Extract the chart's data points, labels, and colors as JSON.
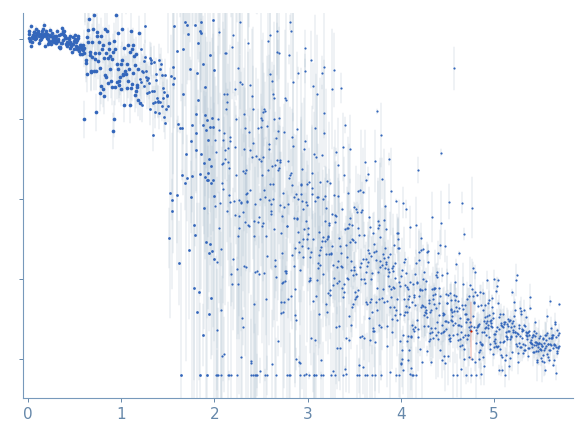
{
  "title": "",
  "xlabel": "",
  "ylabel": "",
  "xlim": [
    -0.05,
    5.85
  ],
  "background_color": "#ffffff",
  "dot_color": "#3366bb",
  "error_color": "#aabccc",
  "outlier_color": "#cc2200",
  "axis_color": "#7799bb",
  "tick_color": "#6688aa",
  "seed": 42,
  "q_max": 5.7,
  "I0": 1.0,
  "Rg": 0.55,
  "noise_low": 0.01,
  "noise_high": 0.35
}
